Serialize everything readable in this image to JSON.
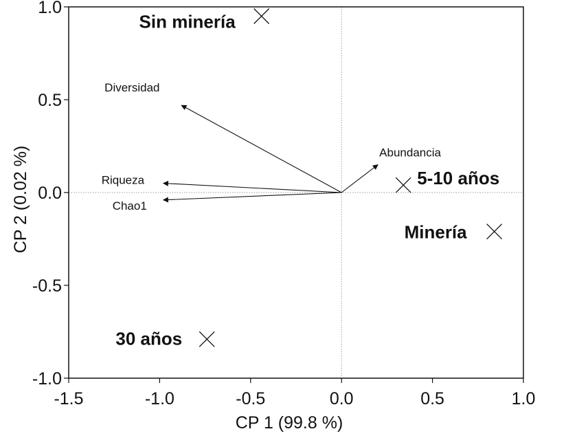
{
  "chart_data": {
    "type": "scatter",
    "subtype": "biplot",
    "title": "",
    "xlabel": "CP 1 (99.8 %)",
    "ylabel": "CP 2 (0.02 %)",
    "xlim": [
      -1.5,
      1.0
    ],
    "ylim": [
      -1.0,
      1.0
    ],
    "xticks": [
      -1.5,
      -1.0,
      -0.5,
      0.0,
      0.5,
      1.0
    ],
    "xtick_labels": [
      "-1.5",
      "-1.0",
      "-0.5",
      "0.0",
      "0.5",
      "1.0"
    ],
    "yticks": [
      -1.0,
      -0.5,
      0.0,
      0.5,
      1.0
    ],
    "ytick_labels": [
      "-1.0",
      "-0.5",
      "0.0",
      "0.5",
      "1.0"
    ],
    "grid": false,
    "reference_lines": "dotted lines at x = 0 and y = 0",
    "points": [
      {
        "label": "Sin minería",
        "x": -0.44,
        "y": 0.95
      },
      {
        "label": "5-10 años",
        "x": 0.34,
        "y": 0.04
      },
      {
        "label": "Minería",
        "x": 0.84,
        "y": -0.21
      },
      {
        "label": "30 años",
        "x": -0.74,
        "y": -0.79
      }
    ],
    "vectors": [
      {
        "label": "Diversidad",
        "x": -0.88,
        "y": 0.47
      },
      {
        "label": "Abundancia",
        "x": 0.2,
        "y": 0.15
      },
      {
        "label": "Riqueza",
        "x": -0.98,
        "y": 0.05
      },
      {
        "label": "Chao1",
        "x": -0.98,
        "y": -0.04
      }
    ],
    "marker": "x",
    "colors": {
      "foreground": "#111111",
      "reference_line": "#9a9a9a",
      "background": "#ffffff"
    }
  }
}
